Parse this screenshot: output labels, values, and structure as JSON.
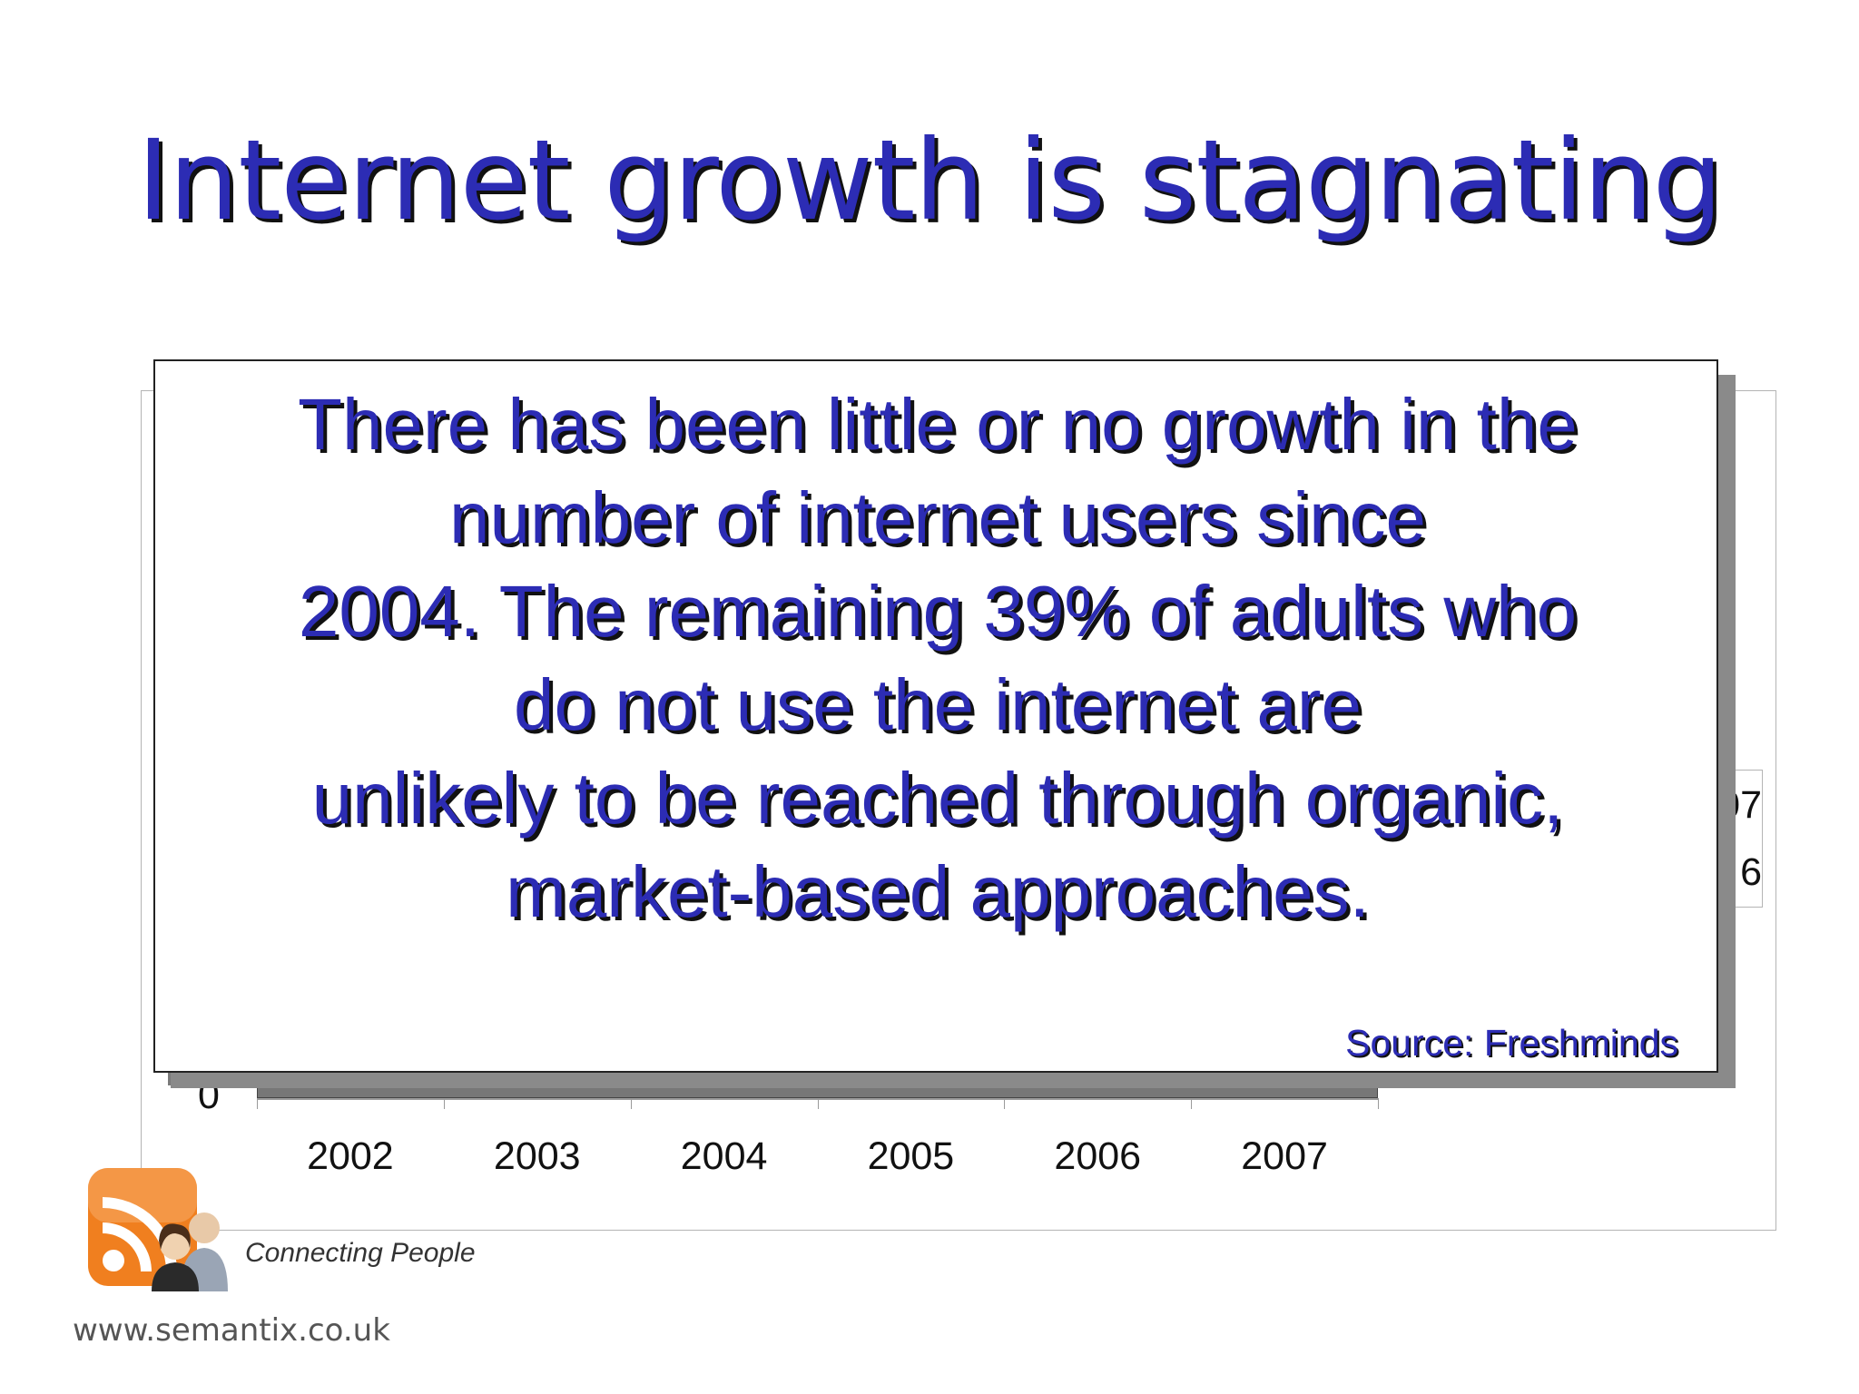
{
  "slide": {
    "title": "Internet growth is stagnating"
  },
  "callout": {
    "lines": [
      "There has been little or no growth in the",
      "number of internet users since",
      "2004. The remaining 39% of adults who",
      "do not use the internet are",
      "unlikely to be reached through organic,",
      "market-based approaches."
    ],
    "source": "Source: Freshminds"
  },
  "chart_data": {
    "type": "bar",
    "categories": [
      "2002",
      "2003",
      "2004",
      "2005",
      "2006",
      "2007"
    ],
    "y_tick_visible": "0",
    "legend_partial": [
      "07",
      "6"
    ],
    "legend_placement": "right"
  },
  "footer": {
    "tagline": "Connecting People",
    "url": "www.semantix.co.uk",
    "logo_icon": "rss-people-logo-icon"
  },
  "colors": {
    "title_blue": "#2c2cb4",
    "logo_orange": "#f07f1f"
  }
}
